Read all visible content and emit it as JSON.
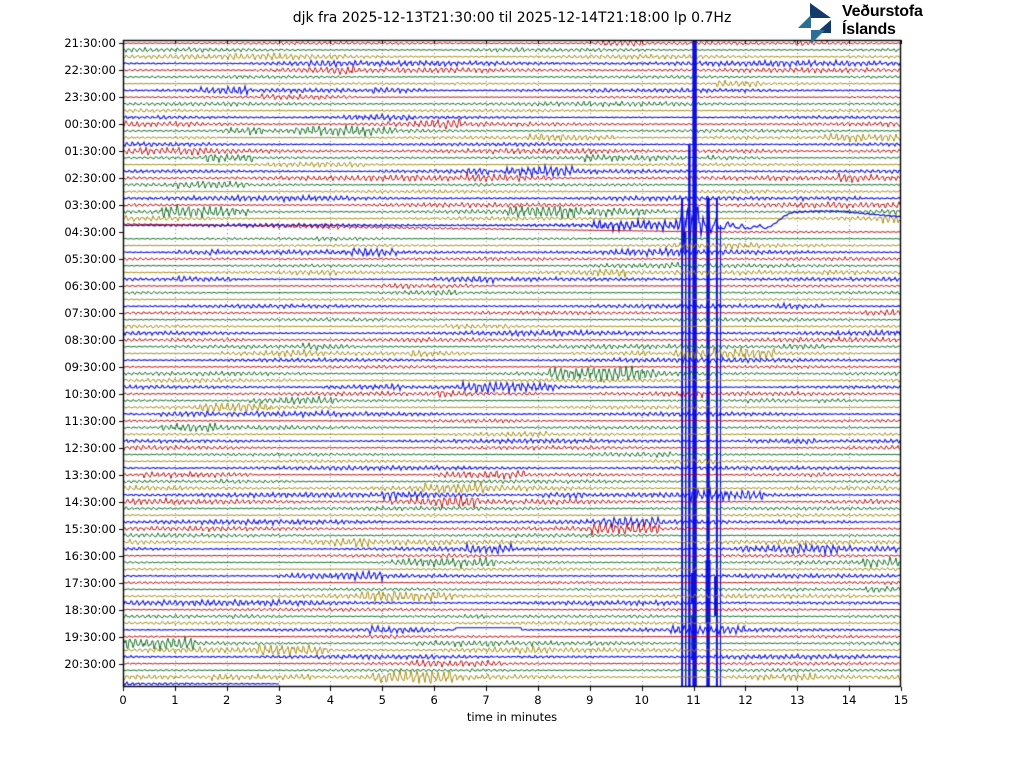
{
  "logo": {
    "line1": "Veðurstofa",
    "line2": "Íslands",
    "navy": "#14396b",
    "teal": "#2a7095"
  },
  "chart_data": {
    "type": "helicorder",
    "title": "djk fra 2025-12-13T21:30:00 til 2025-12-14T21:18:00 lp 0.7Hz",
    "station": "djk",
    "start": "2025-12-13T21:30:00",
    "end": "2025-12-14T21:18:00",
    "filter": "lp 0.7Hz",
    "xlabel": "time in minutes",
    "x_range": [
      0,
      15
    ],
    "x_ticks": [
      0,
      1,
      2,
      3,
      4,
      5,
      6,
      7,
      8,
      9,
      10,
      11,
      12,
      13,
      14,
      15
    ],
    "minutes_per_line": 15,
    "lines_per_hour": 4,
    "n_lines": 96,
    "grid": "dotted-vertical-every-minute",
    "grid_color": "#8a8a8a",
    "figure_bg": "#ffffff",
    "row_labels": [
      "21:30:00",
      "22:30:00",
      "23:30:00",
      "00:30:00",
      "01:30:00",
      "02:30:00",
      "03:30:00",
      "04:30:00",
      "05:30:00",
      "06:30:00",
      "07:30:00",
      "08:30:00",
      "09:30:00",
      "10:30:00",
      "11:30:00",
      "12:30:00",
      "13:30:00",
      "14:30:00",
      "15:30:00",
      "16:30:00",
      "17:30:00",
      "18:30:00",
      "19:30:00",
      "20:30:00"
    ],
    "trace_colors_cycle": [
      "#b40000",
      "#006414",
      "#9c8400",
      "#0d0de0"
    ],
    "color_meaning": "each hour = 4 lines of 15 min: :30 red, :45 green, :00 olive, :15 blue",
    "noise": {
      "seed": 20251213,
      "base_amp": 1.5
    },
    "main_event": {
      "row": 27,
      "trace_start_time": "04:15:00",
      "event_minute_in_row": 10.8,
      "clipped_lines": [
        {
          "minute": 10.78,
          "width": 2,
          "y_from": 198,
          "y_to": 686,
          "after_row": 27
        },
        {
          "minute": 10.85,
          "width": 1.5,
          "y_from": 232,
          "y_to": 686,
          "after_row": 27
        },
        {
          "minute": 10.92,
          "width": 2.5,
          "y_from": 145,
          "y_to": 686,
          "after_row": 27
        },
        {
          "minute": 11.02,
          "width": 4.5,
          "y_from": 41,
          "y_to": 686,
          "after_row": 27
        },
        {
          "minute": 11.28,
          "width": 3.5,
          "y_from": 198,
          "y_to": 686,
          "after_row": 27
        },
        {
          "minute": 11.45,
          "width": 2,
          "y_from": 198,
          "y_to": 686,
          "after_row": 27
        },
        {
          "minute": 11.52,
          "width": 1.2,
          "y_from": 225,
          "y_to": 686,
          "after_row": 27
        }
      ],
      "aftershock_blobs": [
        {
          "minute": 11.0,
          "width": 5,
          "y_from": 573,
          "y_to": 603,
          "after_row": 81
        },
        {
          "minute": 11.0,
          "width": 4.5,
          "y_from": 615,
          "y_to": 660,
          "after_row": 81
        },
        {
          "minute": 11.28,
          "width": 5,
          "y_from": 560,
          "y_to": 623,
          "after_row": 81
        },
        {
          "minute": 11.43,
          "width": 3.5,
          "y_from": 577,
          "y_to": 616,
          "after_row": 81
        }
      ],
      "post_spikes_min": [
        11.43,
        11.66,
        11.76,
        11.93,
        12.18,
        12.28
      ],
      "post_spike_heights": [
        9,
        7,
        5,
        4,
        3,
        4
      ],
      "post_level_offset": 3,
      "rise_span_min": [
        12.35,
        12.95
      ],
      "plateau_offset": -13,
      "decay_start_min": 14.0,
      "end_offset": -8.5
    },
    "drift_trace": {
      "row": 28,
      "trace_start_time": "04:30:00",
      "start_offset": -8,
      "flat_after_min": 11.5
    },
    "flat_step": {
      "row": 87,
      "trace_start_time": "19:15:00",
      "from_min": 6.42,
      "to_min": 7.68,
      "offset": -2
    },
    "last_trace": {
      "row": 95,
      "trace_start_time": "21:15:00",
      "end_min": 3.02
    }
  }
}
